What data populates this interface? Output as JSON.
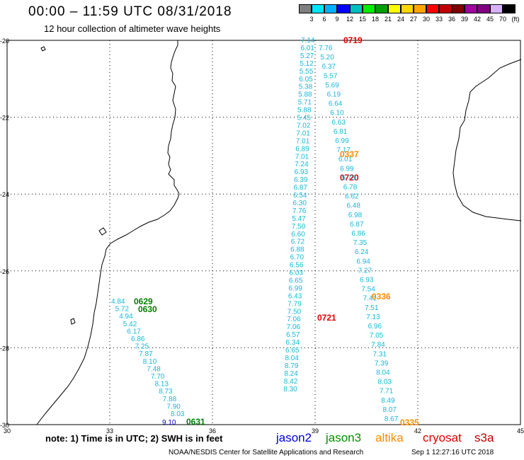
{
  "title": "00:00 – 11:59 UTC 08/31/2018",
  "subtitle": "12 hour collection of altimeter wave heights",
  "colorbar": {
    "colors": [
      "#7f7f7f",
      "#00e5ff",
      "#00b0ff",
      "#0000ff",
      "#00bfbf",
      "#00ee00",
      "#00a000",
      "#ffff00",
      "#ffd700",
      "#ffa500",
      "#ff0000",
      "#c00000",
      "#800000",
      "#a000a0",
      "#800080",
      "#d8b0ff",
      "#000000"
    ],
    "labels": [
      "3",
      "6",
      "9",
      "12",
      "15",
      "18",
      "21",
      "24",
      "27",
      "30",
      "33",
      "36",
      "39",
      "42",
      "45",
      "70",
      "(ft)"
    ]
  },
  "axes": {
    "lat_labels": [
      "-20",
      "-22",
      "-24",
      "-26",
      "-28",
      "-30"
    ],
    "lon_labels": [
      "30",
      "33",
      "36",
      "39",
      "42",
      "45"
    ]
  },
  "tracks": [
    {
      "satellite": "jason3",
      "color": "#18b8d8",
      "time": "0630",
      "time_color": "#008000",
      "values": [
        "4.84",
        "5.72",
        "4.94",
        "5.42",
        "6.17",
        "6.86",
        "7.25",
        "7.87",
        "8.10",
        "7.48",
        "7.70",
        "8.13",
        "8.73",
        "7.88",
        "7.90",
        "8.03"
      ]
    },
    {
      "satellite": "jason2",
      "color": "#0000cc",
      "time": "0631",
      "time_color": "#008000",
      "values": [
        "9.10"
      ]
    },
    {
      "satellite": "jason3",
      "time": "0629",
      "time_color": "#008000",
      "values": []
    },
    {
      "satellite": "cryosat",
      "color": "#18b8d8",
      "times": [
        "0719",
        "0720",
        "0721"
      ],
      "time_color": "#e00000",
      "values": [
        "7.14",
        "6.01",
        "5.27",
        "5.12",
        "5.55",
        "6.05",
        "5.38",
        "5.88",
        "5.71",
        "5.88",
        "5.45",
        "7.02",
        "7.01",
        "7.01",
        "6.89",
        "7.01",
        "7.24",
        "6.93",
        "6.39",
        "6.87",
        "6.54",
        "6.30",
        "7.76",
        "5.47",
        "7.50",
        "6.60",
        "6.72",
        "6.88",
        "6.70",
        "6.56",
        "6.03",
        "6.65",
        "6.99",
        "6.43",
        "7.79",
        "7.50",
        "7.06",
        "7.06",
        "6.57",
        "6.34",
        "6.65",
        "8.04",
        "8.79",
        "8.24",
        "8.42",
        "8.30"
      ]
    },
    {
      "satellite": "altika",
      "color": "#18b8d8",
      "times": [
        "0337",
        "0336",
        "0335"
      ],
      "time_color": "#ff8c00",
      "values": [
        "7.76",
        "5.20",
        "6.37",
        "5.57",
        "5.69",
        "6.19",
        "6.64",
        "6.10",
        "6.63",
        "6.81",
        "6.99",
        "7.17",
        "6.01",
        "6.99",
        "5.73",
        "6.78",
        "6.62",
        "6.48",
        "6.98",
        "6.87",
        "6.86",
        "7.35",
        "6.24",
        "6.94",
        "7.27",
        "6.93",
        "7.54",
        "7.41",
        "7.51",
        "7.13",
        "6.96",
        "7.05",
        "7.84",
        "7.31",
        "7.39",
        "8.04",
        "8.03",
        "7.71",
        "8.49",
        "8.07",
        "8.67"
      ]
    }
  ],
  "note": "note: 1) Time is in UTC; 2) SWH is in feet",
  "legend": [
    {
      "name": "jason2",
      "color": "#0000dd"
    },
    {
      "name": "jason3",
      "color": "#009000"
    },
    {
      "name": "altika",
      "color": "#ff8c00"
    },
    {
      "name": "cryosat",
      "color": "#e00000"
    },
    {
      "name": "s3a",
      "color": "#c00000"
    }
  ],
  "credit": "NOAA/NESDIS Center for Satellite Applications and Research",
  "stamp": "Sep  1 12:27:16 UTC 2018"
}
